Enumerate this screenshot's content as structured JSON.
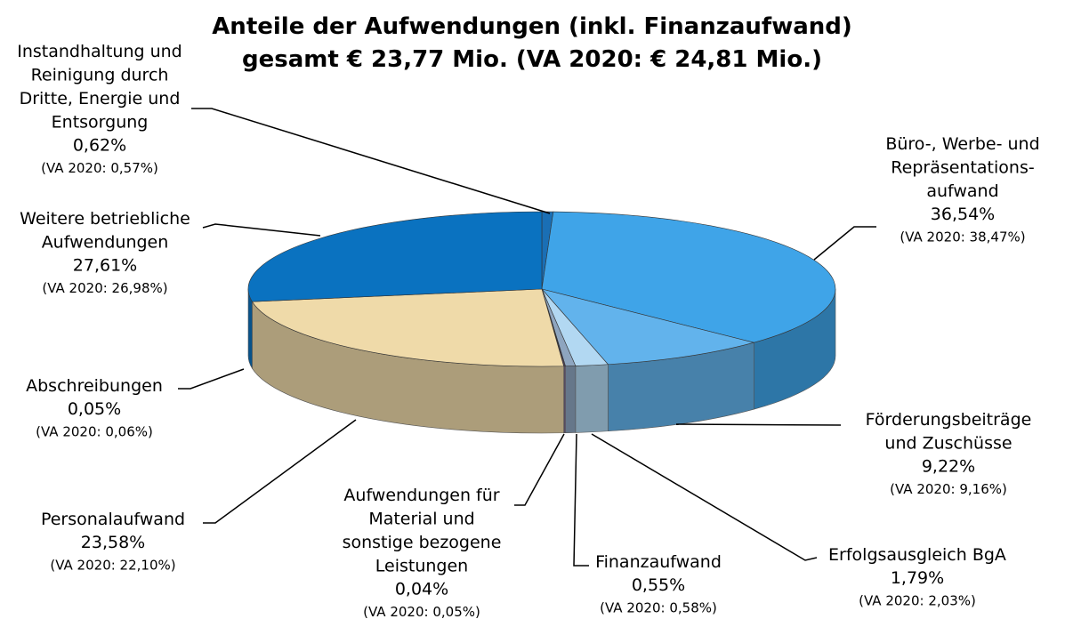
{
  "chart_data": {
    "type": "pie3d",
    "title": "Anteile der Aufwendungen (inkl. Finanzaufwand)\ngesamt € 23,77 Mio. (VA 2020: € 24,81 Mio.)",
    "categories": [
      "Instandhaltung und\nReinigung durch\nDritte, Energie und\nEntsorgung",
      "Büro-, Werbe- und\nRepräsentations-\naufwand",
      "Förderungsbeiträge\nund Zuschüsse",
      "Erfolgsausgleich BgA",
      "Finanzaufwand",
      "Aufwendungen für\nMaterial und\nsonstige bezogene\nLeistungen",
      "Abschreibungen",
      "Personalaufwand",
      "Weitere betriebliche\nAufwendungen"
    ],
    "values": [
      0.62,
      36.54,
      9.22,
      1.79,
      0.55,
      0.04,
      0.05,
      23.58,
      27.61
    ],
    "value_labels": [
      "0,62%",
      "36,54%",
      "9,22%",
      "1,79%",
      "0,55%",
      "0,04%",
      "0,05%",
      "23,58%",
      "27,61%"
    ],
    "comparison_labels": [
      "(VA 2020: 0,57%)",
      "(VA 2020: 38,47%)",
      "(VA 2020: 9,16%)",
      "(VA 2020: 2,03%)",
      "(VA 2020: 0,58%)",
      "(VA 2020: 0,05%)",
      "(VA 2020: 0,06%)",
      "(VA 2020: 22,10%)",
      "(VA 2020: 26,98%)"
    ],
    "colors": [
      "#1a6fb5",
      "#3fa4e8",
      "#62b3ec",
      "#b2d8f2",
      "#8ea5bf",
      "#a67cc9",
      "#7a5aa0",
      "#efdaa9",
      "#0a72c0"
    ]
  }
}
